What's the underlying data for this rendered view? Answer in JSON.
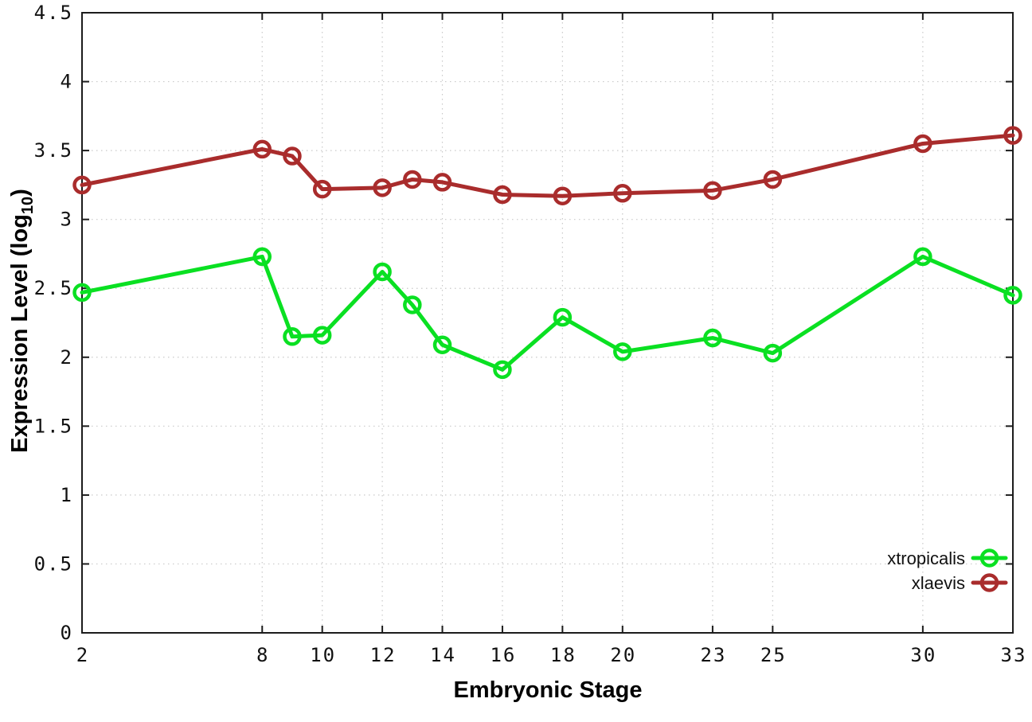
{
  "chart_data": {
    "type": "line",
    "title": "",
    "xlabel": "Embryonic Stage",
    "ylabel_text": "Expression Level (log10)",
    "ylabel_parts": {
      "main": "Expression Level (log",
      "sub": "10",
      "close": ")"
    },
    "xlim": [
      2,
      33
    ],
    "ylim": [
      0,
      4.5
    ],
    "x_ticks": [
      2,
      8,
      10,
      12,
      14,
      16,
      18,
      20,
      23,
      25,
      30,
      33
    ],
    "x_tick_labels": [
      "2",
      "8",
      "10",
      "12",
      "14",
      "16",
      "18",
      "20",
      "23",
      "25",
      "30",
      "33"
    ],
    "y_ticks": [
      0,
      0.5,
      1,
      1.5,
      2,
      2.5,
      3,
      3.5,
      4,
      4.5
    ],
    "y_tick_labels": [
      "0",
      "0.5",
      "1",
      "1.5",
      "2",
      "2.5",
      "3",
      "3.5",
      "4",
      "4.5"
    ],
    "grid": true,
    "grid_style": "dotted",
    "legend_position": "bottom-right-inside",
    "x": [
      2,
      8,
      9,
      10,
      12,
      13,
      14,
      16,
      18,
      20,
      23,
      25,
      30,
      33
    ],
    "series": [
      {
        "name": "xtropicalis",
        "color": "#0ae022",
        "marker": "open-circle",
        "values": [
          2.47,
          2.73,
          2.15,
          2.16,
          2.62,
          2.38,
          2.09,
          1.91,
          2.29,
          2.04,
          2.14,
          2.03,
          2.73,
          2.45
        ]
      },
      {
        "name": "xlaevis",
        "color": "#a92c2c",
        "marker": "open-circle",
        "values": [
          3.25,
          3.51,
          3.46,
          3.22,
          3.23,
          3.29,
          3.27,
          3.18,
          3.17,
          3.19,
          3.21,
          3.29,
          3.55,
          3.61
        ]
      }
    ],
    "colors": {
      "grid": "#c9c9c9",
      "border": "#1c1c1c",
      "text": "#000000",
      "background": "#ffffff"
    }
  }
}
